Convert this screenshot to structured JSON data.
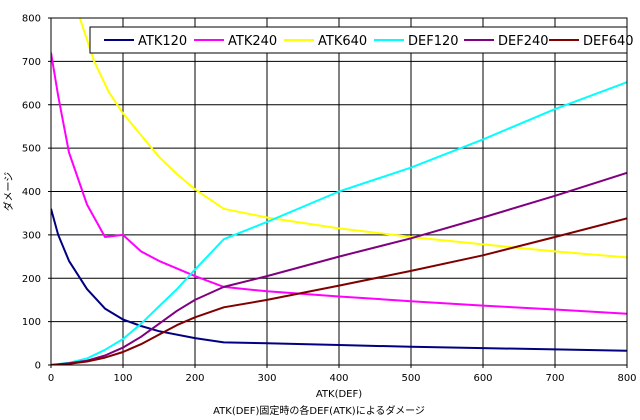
{
  "chart_data": {
    "type": "line",
    "title": "",
    "xlabel": "ATK(DEF)",
    "ylabel": "ダメージ",
    "caption": "ATK(DEF)固定時の各DEF(ATK)によるダメージ",
    "xlim": [
      0,
      800
    ],
    "ylim": [
      0,
      800
    ],
    "xticks": [
      0,
      100,
      200,
      300,
      400,
      500,
      600,
      700,
      800
    ],
    "yticks": [
      0,
      100,
      200,
      300,
      400,
      500,
      600,
      700,
      800
    ],
    "grid": "on",
    "legend_position": "top",
    "series": [
      {
        "name": "ATK120",
        "color": "#000080",
        "x": [
          0,
          10,
          25,
          50,
          75,
          100,
          125,
          150,
          200,
          240,
          300,
          400,
          500,
          600,
          700,
          800
        ],
        "y": [
          360,
          300,
          240,
          175,
          130,
          105,
          90,
          78,
          62,
          52,
          50,
          46,
          42,
          39,
          36,
          33
        ]
      },
      {
        "name": "ATK240",
        "color": "#ff00ff",
        "x": [
          0,
          10,
          25,
          50,
          75,
          100,
          125,
          150,
          200,
          240,
          300,
          400,
          500,
          600,
          700,
          800
        ],
        "y": [
          720,
          620,
          490,
          370,
          295,
          300,
          262,
          240,
          205,
          180,
          170,
          158,
          147,
          137,
          128,
          118
        ]
      },
      {
        "name": "ATK640",
        "color": "#ffff00",
        "x": [
          40,
          60,
          80,
          100,
          125,
          150,
          175,
          200,
          240,
          300,
          400,
          500,
          600,
          700,
          800
        ],
        "y": [
          800,
          700,
          630,
          580,
          530,
          480,
          440,
          405,
          360,
          340,
          315,
          295,
          278,
          262,
          248
        ]
      },
      {
        "name": "DEF120",
        "color": "#00ffff",
        "x": [
          0,
          25,
          50,
          75,
          100,
          125,
          150,
          175,
          200,
          240,
          300,
          400,
          500,
          600,
          700,
          800
        ],
        "y": [
          0,
          5,
          15,
          35,
          60,
          95,
          135,
          175,
          220,
          290,
          330,
          400,
          455,
          520,
          590,
          652
        ]
      },
      {
        "name": "DEF240",
        "color": "#800080",
        "x": [
          0,
          25,
          50,
          75,
          100,
          125,
          150,
          175,
          200,
          240,
          300,
          400,
          500,
          600,
          700,
          800
        ],
        "y": [
          0,
          4,
          10,
          22,
          40,
          65,
          95,
          125,
          150,
          180,
          205,
          250,
          292,
          340,
          390,
          443
        ]
      },
      {
        "name": "DEF640",
        "color": "#800000",
        "x": [
          0,
          25,
          50,
          75,
          100,
          125,
          150,
          175,
          200,
          240,
          300,
          400,
          500,
          600,
          700,
          800
        ],
        "y": [
          0,
          3,
          8,
          17,
          30,
          48,
          70,
          92,
          110,
          133,
          150,
          183,
          217,
          253,
          295,
          338
        ]
      }
    ]
  }
}
